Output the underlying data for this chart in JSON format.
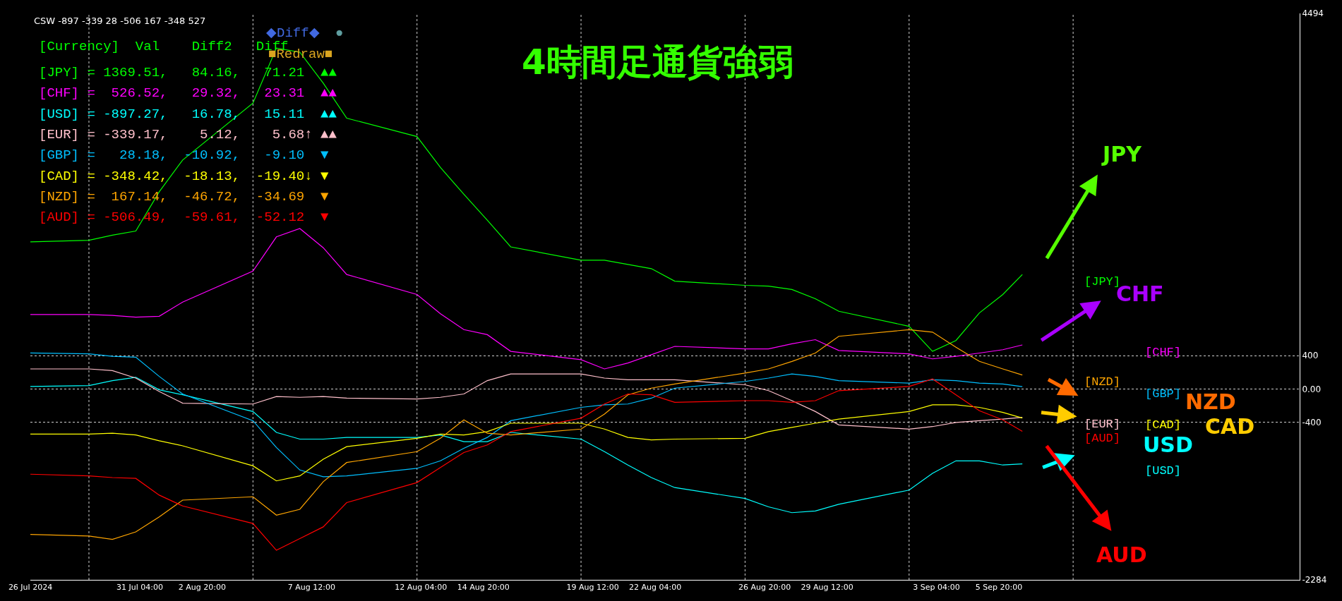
{
  "chart_data": {
    "type": "line",
    "title": "4時間足通貨強弱",
    "x": [
      "2024-07-26T12:00",
      "2024-07-29",
      "2024-07-30",
      "2024-07-31",
      "2024-08-01",
      "2024-08-02",
      "2024-08-05",
      "2024-08-06",
      "2024-08-07",
      "2024-08-08",
      "2024-08-09",
      "2024-08-12",
      "2024-08-13",
      "2024-08-14",
      "2024-08-15",
      "2024-08-16",
      "2024-08-19",
      "2024-08-20",
      "2024-08-21",
      "2024-08-22",
      "2024-08-23",
      "2024-08-26",
      "2024-08-27",
      "2024-08-28",
      "2024-08-29",
      "2024-08-30",
      "2024-09-02",
      "2024-09-03",
      "2024-09-04",
      "2024-09-05",
      "2024-09-06",
      "2024-09-06T20:00"
    ],
    "series": [
      {
        "name": "[JPY]",
        "color": "#00ff00",
        "values": [
          1760,
          1780,
          1840,
          1890,
          2360,
          2740,
          3420,
          4080,
          4030,
          3660,
          3240,
          3020,
          2650,
          2330,
          2020,
          1700,
          1540,
          1540,
          1490,
          1440,
          1290,
          1240,
          1230,
          1190,
          1080,
          930,
          750,
          450,
          580,
          910,
          1130,
          1369.51
        ]
      },
      {
        "name": "[CHF]",
        "color": "#ff00ff",
        "values": [
          890,
          890,
          880,
          860,
          870,
          1040,
          1410,
          1820,
          1920,
          1690,
          1370,
          1130,
          900,
          710,
          650,
          450,
          350,
          240,
          310,
          410,
          510,
          480,
          480,
          540,
          590,
          460,
          420,
          360,
          390,
          430,
          470,
          526.52
        ]
      },
      {
        "name": "[USD]",
        "color": "#00ffff",
        "values": [
          30,
          40,
          100,
          140,
          -10,
          -70,
          -270,
          -520,
          -600,
          -600,
          -580,
          -580,
          -550,
          -630,
          -630,
          -520,
          -600,
          -750,
          -910,
          -1060,
          -1180,
          -1310,
          -1410,
          -1480,
          -1460,
          -1380,
          -1210,
          -1010,
          -860,
          -860,
          -910,
          -897.27
        ]
      },
      {
        "name": "[EUR]",
        "color": "#ffc0cb",
        "values": [
          240,
          240,
          220,
          130,
          -30,
          -170,
          -180,
          -90,
          -100,
          -90,
          -110,
          -120,
          -100,
          -60,
          100,
          180,
          180,
          130,
          110,
          110,
          110,
          50,
          -20,
          -140,
          -270,
          -430,
          -480,
          -450,
          -400,
          -380,
          -360,
          -339.17
        ]
      },
      {
        "name": "[GBP]",
        "color": "#00bfff",
        "values": [
          430,
          420,
          390,
          380,
          150,
          -60,
          -380,
          -700,
          -970,
          -1050,
          -1040,
          -950,
          -860,
          -710,
          -580,
          -380,
          -220,
          -190,
          -180,
          -110,
          10,
          90,
          130,
          180,
          150,
          100,
          70,
          110,
          100,
          70,
          60,
          28.18
        ]
      },
      {
        "name": "[CAD]",
        "color": "#ffff00",
        "values": [
          -540,
          -540,
          -530,
          -550,
          -620,
          -680,
          -920,
          -1100,
          -1040,
          -840,
          -690,
          -590,
          -540,
          -550,
          -510,
          -410,
          -410,
          -480,
          -580,
          -610,
          -600,
          -590,
          -510,
          -460,
          -410,
          -360,
          -270,
          -190,
          -190,
          -220,
          -280,
          -348.42
        ]
      },
      {
        "name": "[NZD]",
        "color": "#ffa500",
        "values": [
          -1740,
          -1760,
          -1800,
          -1710,
          -1530,
          -1330,
          -1290,
          -1510,
          -1440,
          -1110,
          -880,
          -750,
          -590,
          -370,
          -530,
          -550,
          -480,
          -300,
          -70,
          10,
          60,
          190,
          240,
          330,
          430,
          630,
          710,
          680,
          500,
          330,
          240,
          167.14
        ]
      },
      {
        "name": "[AUD]",
        "color": "#ff0000",
        "values": [
          -1020,
          -1040,
          -1060,
          -1070,
          -1270,
          -1400,
          -1610,
          -1930,
          -1790,
          -1650,
          -1360,
          -1120,
          -940,
          -760,
          -670,
          -510,
          -350,
          -180,
          -60,
          -70,
          -160,
          -140,
          -140,
          -160,
          -140,
          -20,
          30,
          120,
          -70,
          -260,
          -370,
          -506.49
        ]
      }
    ],
    "xlim": [
      "2024-07-26T12:00",
      "2024-09-18T16:00"
    ],
    "xticks": [
      {
        "value": "2024-07-26T12:00",
        "label": "26 Jul 2024"
      },
      {
        "value": "2024-07-31T04:00",
        "label": "31 Jul 04:00"
      },
      {
        "value": "2024-08-02T20:00",
        "label": "2 Aug 20:00"
      },
      {
        "value": "2024-08-07T12:00",
        "label": "7 Aug 12:00"
      },
      {
        "value": "2024-08-12T04:00",
        "label": "12 Aug 04:00"
      },
      {
        "value": "2024-08-14T20:00",
        "label": "14 Aug 20:00"
      },
      {
        "value": "2024-08-19T12:00",
        "label": "19 Aug 12:00"
      },
      {
        "value": "2024-08-22T04:00",
        "label": "22 Aug 04:00"
      },
      {
        "value": "2024-08-26T20:00",
        "label": "26 Aug 20:00"
      },
      {
        "value": "2024-08-29T12:00",
        "label": "29 Aug 12:00"
      },
      {
        "value": "2024-09-03T04:00",
        "label": "3 Sep 04:00"
      },
      {
        "value": "2024-09-05T20:00",
        "label": "5 Sep 20:00"
      },
      {
        "value": "2024-07-29",
        "label": null
      },
      {
        "value": "2024-08-05",
        "label": null
      },
      {
        "value": "2024-08-12",
        "label": null
      },
      {
        "value": "2024-08-19",
        "label": null
      },
      {
        "value": "2024-08-26",
        "label": null
      },
      {
        "value": "2024-09-02",
        "label": null
      },
      {
        "value": "2024-09-09",
        "label": null
      }
    ],
    "ylim": [
      -2284,
      4494
    ],
    "yticks": [
      -2284,
      -400,
      {
        "value": 0,
        "label": "0.00"
      },
      400,
      4494
    ],
    "grid": true,
    "annotations": [
      "CSW -897 -339 28 -506 167 -348 527",
      "◆Diff◆",
      "●",
      "■Redraw■",
      "[Currency]  Val    Diff2   Diff",
      "[JPY] = 1369.51,   84.16,   71.21  ▲▲",
      "[CHF] =  526.52,   29.32,   23.31  ▲▲",
      "[USD] = -897.27,   16.78,   15.11  ▲▲",
      "[EUR] = -339.17,    5.12,    5.68↑ ▲▲",
      "[GBP] =   28.18,  -10.92,   -9.10  ▼",
      "[CAD] = -348.42,  -18.13,  -19.40↓ ▼",
      "[NZD] =  167.14,  -46.72,  -34.69  ▼",
      "[AUD] = -506.49,  -59.61,  -52.12  ▼",
      "JPY",
      "CHF",
      "NZD",
      "CAD",
      "USD",
      "AUD"
    ]
  }
}
